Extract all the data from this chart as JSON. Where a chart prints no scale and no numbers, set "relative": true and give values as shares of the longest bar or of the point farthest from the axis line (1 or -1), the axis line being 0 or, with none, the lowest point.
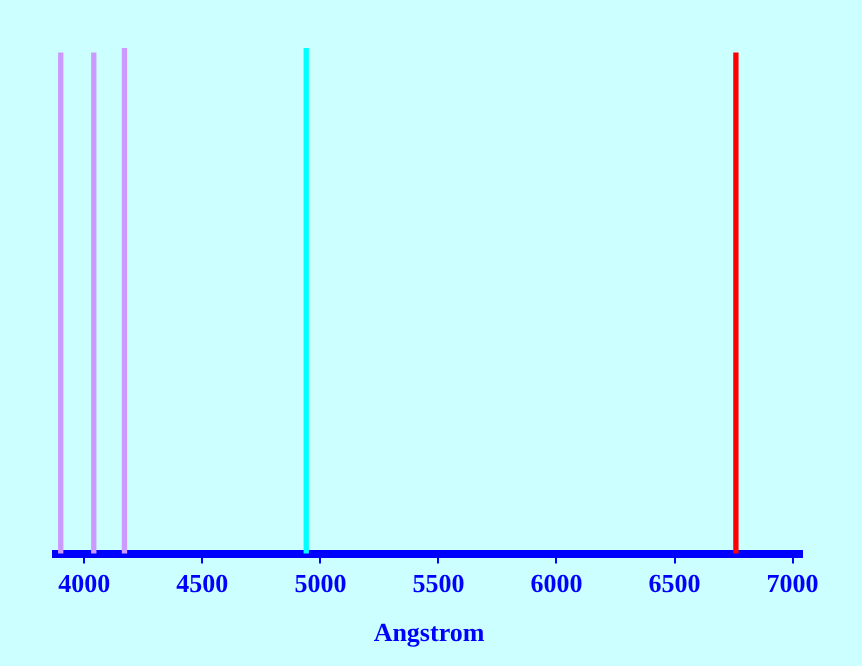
{
  "chart_data": {
    "type": "bar",
    "relative": true,
    "xlabel": "Angstrom",
    "x": [
      3900,
      4040,
      4170,
      4940,
      6760
    ],
    "values": [
      0.99,
      0.99,
      1,
      1,
      0.99
    ],
    "colors": [
      "#cc99ff",
      "#cc99ff",
      "#cc99ff",
      "#00ffff",
      "#ff0000"
    ],
    "xlim": [
      3880,
      7040
    ],
    "xticks": [
      4000,
      4500,
      5000,
      5500,
      6000,
      6500,
      7000
    ],
    "grid": false,
    "legend": false
  }
}
